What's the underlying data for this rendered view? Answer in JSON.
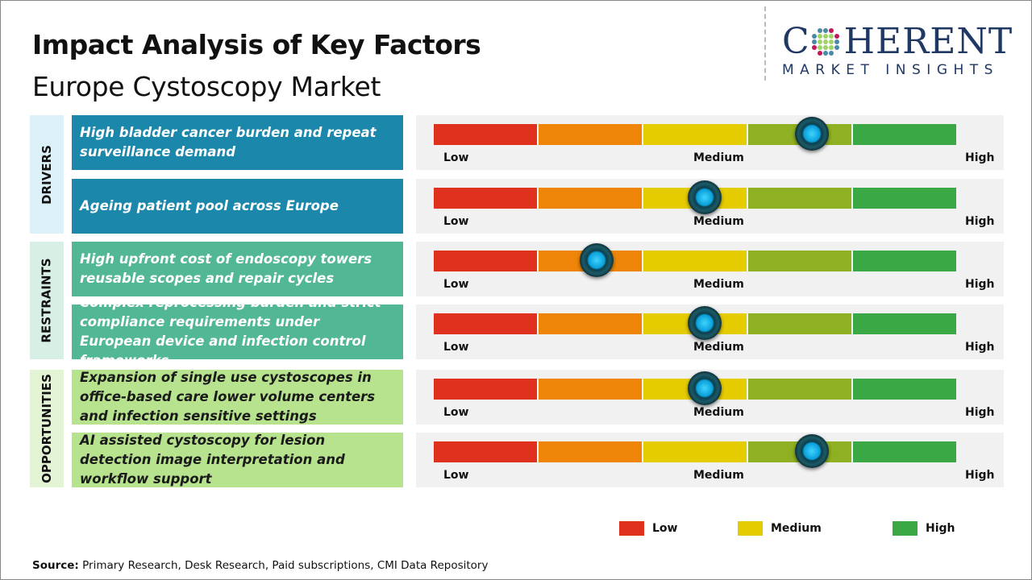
{
  "title": "Impact Analysis of Key Factors",
  "subtitle": "Europe Cystoscopy Market",
  "logo": {
    "name": "COHERENT",
    "tagline": "MARKET INSIGHTS"
  },
  "colors": {
    "drivers": "#1a87ab",
    "restraints": "#52b795",
    "opportunities": "#b7e38f",
    "scale": [
      "#e0301e",
      "#ee8508",
      "#e5cc00",
      "#8fb022",
      "#3aa845"
    ]
  },
  "scale_labels": {
    "low": "Low",
    "medium": "Medium",
    "high": "High"
  },
  "chart_data": {
    "type": "gauge-bars",
    "categories": [
      {
        "name": "DRIVERS",
        "factors": [
          {
            "label": "High bladder cancer burden and repeat surveillance demand",
            "impact": 0.724
          },
          {
            "label": "Ageing patient pool across Europe",
            "impact": 0.519
          }
        ]
      },
      {
        "name": "RESTRAINTS",
        "factors": [
          {
            "label": "High upfront cost of endoscopy towers reusable scopes and repair cycles",
            "impact": 0.312
          },
          {
            "label": "Complex reprocessing burden and strict compliance requirements under European device and infection control frameworks",
            "impact": 0.519
          }
        ]
      },
      {
        "name": "OPPORTUNITIES",
        "factors": [
          {
            "label": "Expansion of single use cystoscopes in office-based care lower volume centers and infection sensitive settings",
            "impact": 0.519
          },
          {
            "label": "AI assisted cystoscopy for lesion detection image interpretation and workflow support",
            "impact": 0.724
          }
        ]
      }
    ],
    "legend": [
      {
        "label": "Low",
        "color": "#e0301e"
      },
      {
        "label": "Medium",
        "color": "#e5cc00"
      },
      {
        "label": "High",
        "color": "#3aa845"
      }
    ],
    "legend_placement": "bottom-right"
  },
  "source": {
    "label": "Source:",
    "text": " Primary Research, Desk Research, Paid subscriptions, CMI Data Repository"
  }
}
